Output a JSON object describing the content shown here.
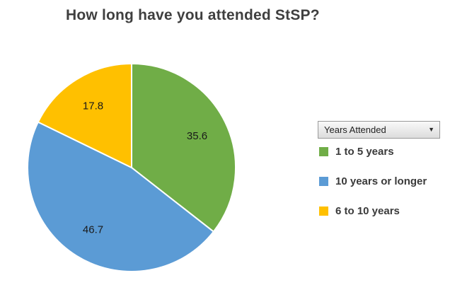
{
  "title": "How long have you attended StSP?",
  "legend": {
    "field_button": {
      "label": "Years Attended"
    },
    "items": [
      {
        "label": "1 to 5 years",
        "color": "#70AD47"
      },
      {
        "label": "10 years or longer",
        "color": "#5B9BD5"
      },
      {
        "label": "6 to 10 years",
        "color": "#FFC000"
      }
    ]
  },
  "chart_data": {
    "type": "pie",
    "title": "How long have you attended StSP?",
    "categories": [
      "1 to 5 years",
      "10 years or longer",
      "6 to 10 years"
    ],
    "values": [
      35.6,
      46.7,
      17.8
    ],
    "data_labels": [
      "35.6",
      "46.7",
      "17.8"
    ],
    "colors": [
      "#70AD47",
      "#5B9BD5",
      "#FFC000"
    ],
    "start_angle_deg": 0,
    "direction": "clockwise",
    "legend_position": "right",
    "legend_field": "Years Attended"
  }
}
